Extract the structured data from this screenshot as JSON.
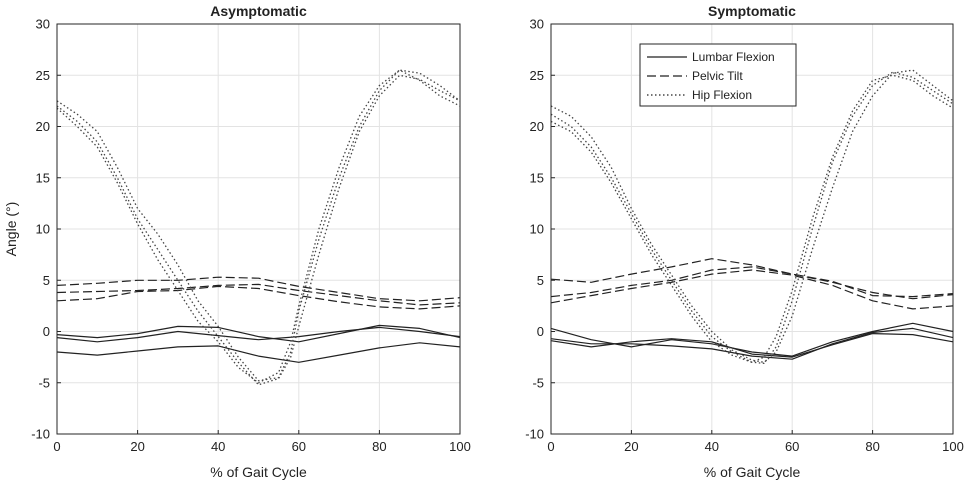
{
  "chart_data": [
    {
      "type": "line",
      "title": "Asymptomatic",
      "xlabel": "% of Gait Cycle",
      "ylabel": "Angle (°)",
      "xlim": [
        0,
        100
      ],
      "ylim": [
        -10,
        30
      ],
      "xticks": [
        0,
        20,
        40,
        60,
        80,
        100
      ],
      "yticks": [
        -10,
        -5,
        0,
        5,
        10,
        15,
        20,
        25,
        30
      ],
      "grid": true,
      "legend": null,
      "series": [
        {
          "name": "Lumbar Flexion",
          "style": "solid",
          "x": [
            0,
            10,
            20,
            30,
            40,
            50,
            60,
            70,
            80,
            90,
            100
          ],
          "y": [
            -0.3,
            -0.6,
            -0.2,
            0.5,
            0.4,
            -0.5,
            -1.0,
            -0.2,
            0.6,
            0.3,
            -0.6
          ]
        },
        {
          "name": "Lumbar Flexion",
          "style": "solid",
          "x": [
            0,
            10,
            20,
            30,
            40,
            50,
            60,
            70,
            80,
            90,
            100
          ],
          "y": [
            -0.6,
            -1.0,
            -0.6,
            0.0,
            -0.4,
            -0.8,
            -0.5,
            0.0,
            0.4,
            0.0,
            -0.5
          ]
        },
        {
          "name": "Lumbar Flexion",
          "style": "solid",
          "x": [
            0,
            10,
            20,
            30,
            40,
            50,
            60,
            70,
            80,
            90,
            100
          ],
          "y": [
            -2.0,
            -2.3,
            -1.9,
            -1.5,
            -1.4,
            -2.4,
            -3.0,
            -2.3,
            -1.6,
            -1.1,
            -1.5
          ]
        },
        {
          "name": "Pelvic Tilt",
          "style": "dashed",
          "x": [
            0,
            10,
            20,
            30,
            40,
            50,
            60,
            70,
            80,
            90,
            100
          ],
          "y": [
            4.5,
            4.7,
            5.0,
            5.0,
            5.3,
            5.2,
            4.4,
            3.8,
            3.2,
            3.0,
            3.3
          ]
        },
        {
          "name": "Pelvic Tilt",
          "style": "dashed",
          "x": [
            0,
            10,
            20,
            30,
            40,
            50,
            60,
            70,
            80,
            90,
            100
          ],
          "y": [
            3.8,
            3.9,
            4.0,
            4.2,
            4.5,
            4.6,
            4.0,
            3.5,
            3.0,
            2.6,
            2.8
          ]
        },
        {
          "name": "Pelvic Tilt",
          "style": "dashed",
          "x": [
            0,
            10,
            20,
            30,
            40,
            50,
            60,
            70,
            80,
            90,
            100
          ],
          "y": [
            3.0,
            3.2,
            3.9,
            4.0,
            4.4,
            4.2,
            3.5,
            2.9,
            2.4,
            2.2,
            2.5
          ]
        },
        {
          "name": "Hip Flexion",
          "style": "dotted",
          "x": [
            0,
            5,
            10,
            15,
            20,
            25,
            30,
            35,
            40,
            45,
            50,
            55,
            58,
            60,
            65,
            70,
            75,
            80,
            85,
            90,
            95,
            100
          ],
          "y": [
            22.5,
            21.2,
            19.5,
            16.0,
            12.0,
            9.5,
            6.5,
            3.0,
            0.5,
            -2.5,
            -4.8,
            -4.5,
            -2.0,
            2.0,
            9.0,
            15.0,
            20.0,
            23.5,
            25.5,
            25.2,
            24.0,
            22.5
          ]
        },
        {
          "name": "Hip Flexion",
          "style": "dotted",
          "x": [
            0,
            5,
            10,
            15,
            20,
            25,
            30,
            35,
            40,
            45,
            50,
            55,
            58,
            60,
            65,
            70,
            75,
            80,
            85,
            90,
            95,
            100
          ],
          "y": [
            22.0,
            20.5,
            18.5,
            15.0,
            11.0,
            8.0,
            5.0,
            2.0,
            -0.5,
            -3.0,
            -5.2,
            -4.6,
            -2.5,
            0.5,
            7.5,
            14.0,
            19.5,
            23.0,
            25.0,
            24.6,
            23.5,
            22.5
          ]
        },
        {
          "name": "Hip Flexion",
          "style": "dotted",
          "x": [
            0,
            5,
            10,
            15,
            20,
            25,
            30,
            35,
            40,
            45,
            50,
            55,
            58,
            60,
            65,
            70,
            75,
            80,
            85,
            90,
            95,
            100
          ],
          "y": [
            21.8,
            20.0,
            18.0,
            14.5,
            10.5,
            7.0,
            4.0,
            1.0,
            -1.0,
            -3.5,
            -5.0,
            -4.0,
            -1.0,
            2.5,
            10.0,
            16.0,
            21.0,
            24.0,
            25.5,
            24.5,
            23.0,
            22.0
          ]
        }
      ]
    },
    {
      "type": "line",
      "title": "Symptomatic",
      "xlabel": "% of Gait Cycle",
      "ylabel": "",
      "xlim": [
        0,
        100
      ],
      "ylim": [
        -10,
        30
      ],
      "xticks": [
        0,
        20,
        40,
        60,
        80,
        100
      ],
      "yticks": [
        -10,
        -5,
        0,
        5,
        10,
        15,
        20,
        25,
        30
      ],
      "grid": true,
      "legend": {
        "placement": "top-center",
        "entries": [
          {
            "label": "Lumbar Flexion",
            "style": "solid"
          },
          {
            "label": "Pelvic Tilt",
            "style": "dashed"
          },
          {
            "label": "Hip Flexion",
            "style": "dotted"
          }
        ]
      },
      "series": [
        {
          "name": "Lumbar Flexion",
          "style": "solid",
          "x": [
            0,
            10,
            20,
            30,
            40,
            50,
            60,
            70,
            80,
            90,
            100
          ],
          "y": [
            0.3,
            -0.8,
            -1.5,
            -0.8,
            -1.2,
            -2.0,
            -2.4,
            -1.0,
            0.0,
            0.8,
            0.0
          ]
        },
        {
          "name": "Lumbar Flexion",
          "style": "solid",
          "x": [
            0,
            10,
            20,
            30,
            40,
            50,
            60,
            70,
            80,
            90,
            100
          ],
          "y": [
            -0.7,
            -1.2,
            -1.2,
            -1.4,
            -1.7,
            -2.4,
            -2.7,
            -1.2,
            -0.1,
            0.3,
            -0.6
          ]
        },
        {
          "name": "Lumbar Flexion",
          "style": "solid",
          "x": [
            0,
            10,
            20,
            30,
            40,
            50,
            60,
            70,
            80,
            90,
            100
          ],
          "y": [
            -0.9,
            -1.5,
            -1.0,
            -0.7,
            -1.0,
            -2.2,
            -2.5,
            -1.3,
            -0.2,
            -0.3,
            -1.0
          ]
        },
        {
          "name": "Pelvic Tilt",
          "style": "dashed",
          "x": [
            0,
            10,
            20,
            30,
            40,
            50,
            60,
            70,
            80,
            90,
            100
          ],
          "y": [
            5.1,
            4.8,
            5.6,
            6.3,
            7.1,
            6.5,
            5.6,
            4.8,
            3.8,
            3.2,
            3.6
          ]
        },
        {
          "name": "Pelvic Tilt",
          "style": "dashed",
          "x": [
            0,
            10,
            20,
            30,
            40,
            50,
            60,
            70,
            80,
            90,
            100
          ],
          "y": [
            3.4,
            3.8,
            4.5,
            5.0,
            6.0,
            6.3,
            5.6,
            4.9,
            3.5,
            3.4,
            3.7
          ]
        },
        {
          "name": "Pelvic Tilt",
          "style": "dashed",
          "x": [
            0,
            10,
            20,
            30,
            40,
            50,
            60,
            70,
            80,
            90,
            100
          ],
          "y": [
            2.8,
            3.5,
            4.2,
            4.8,
            5.6,
            6.0,
            5.5,
            4.5,
            3.0,
            2.2,
            2.5
          ]
        },
        {
          "name": "Hip Flexion",
          "style": "dotted",
          "x": [
            0,
            5,
            10,
            15,
            20,
            25,
            30,
            35,
            40,
            45,
            50,
            53,
            56,
            60,
            65,
            70,
            75,
            80,
            85,
            90,
            95,
            100
          ],
          "y": [
            22.0,
            21.0,
            19.0,
            16.0,
            12.0,
            8.5,
            5.5,
            2.5,
            0.0,
            -1.8,
            -2.8,
            -3.0,
            -2.0,
            1.5,
            8.0,
            14.0,
            19.5,
            23.0,
            25.2,
            25.5,
            24.0,
            22.5
          ]
        },
        {
          "name": "Hip Flexion",
          "style": "dotted",
          "x": [
            0,
            5,
            10,
            15,
            20,
            25,
            30,
            35,
            40,
            45,
            50,
            53,
            56,
            60,
            65,
            70,
            75,
            80,
            85,
            90,
            95,
            100
          ],
          "y": [
            21.2,
            20.0,
            18.0,
            15.0,
            11.5,
            8.0,
            5.0,
            2.0,
            -0.5,
            -2.0,
            -3.0,
            -3.1,
            -1.5,
            3.0,
            10.0,
            16.5,
            21.0,
            24.0,
            25.3,
            24.8,
            23.5,
            22.2
          ]
        },
        {
          "name": "Hip Flexion",
          "style": "dotted",
          "x": [
            0,
            5,
            10,
            15,
            20,
            25,
            30,
            35,
            40,
            45,
            50,
            53,
            56,
            60,
            65,
            70,
            75,
            80,
            85,
            90,
            95,
            100
          ],
          "y": [
            20.5,
            19.5,
            17.5,
            14.5,
            11.0,
            7.5,
            4.5,
            1.5,
            -1.0,
            -2.3,
            -3.0,
            -2.5,
            -0.5,
            4.0,
            11.0,
            17.0,
            21.5,
            24.5,
            25.0,
            24.5,
            23.0,
            21.8
          ]
        }
      ]
    }
  ]
}
